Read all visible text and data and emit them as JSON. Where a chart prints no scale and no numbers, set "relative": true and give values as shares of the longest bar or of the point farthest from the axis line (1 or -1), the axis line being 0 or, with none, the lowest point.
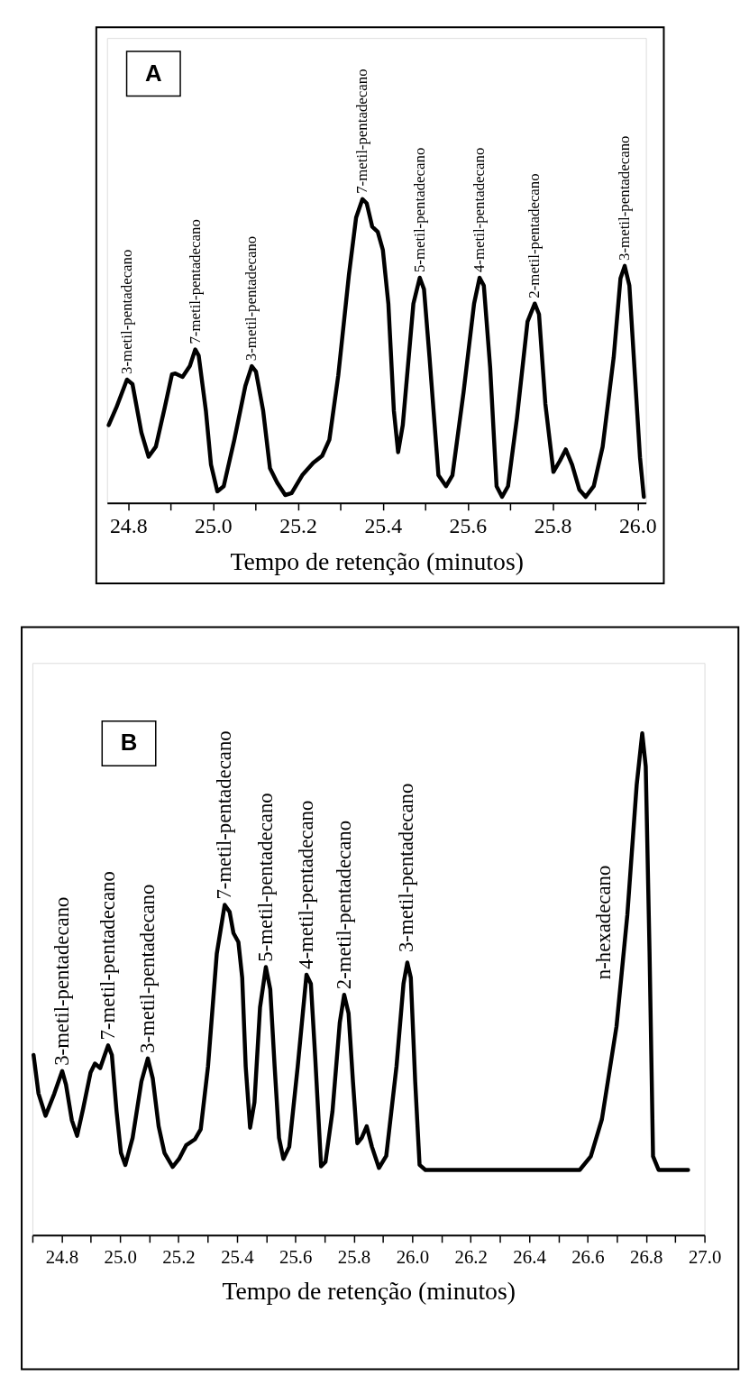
{
  "chart_data": [
    {
      "type": "line",
      "relative": true,
      "xlabel": "Tempo de retenção (minutos)",
      "color": "#000000",
      "line_style": "solid",
      "xlim": [
        24.75,
        26.02
      ],
      "xticks": [
        {
          "value": 24.8,
          "label": "24.8"
        },
        {
          "value": 24.9,
          "label": null
        },
        {
          "value": 25.0,
          "label": "25.0"
        },
        {
          "value": 25.1,
          "label": null
        },
        {
          "value": 25.2,
          "label": "25.2"
        },
        {
          "value": 25.3,
          "label": null
        },
        {
          "value": 25.4,
          "label": "25.4"
        },
        {
          "value": 25.5,
          "label": null
        },
        {
          "value": 25.6,
          "label": "25.6"
        },
        {
          "value": 25.7,
          "label": null
        },
        {
          "value": 25.8,
          "label": "25.8"
        },
        {
          "value": 25.9,
          "label": null
        },
        {
          "value": 26.0,
          "label": "26.0"
        }
      ],
      "x": [
        24.754,
        24.772,
        24.797,
        24.81,
        24.831,
        24.848,
        24.865,
        24.886,
        24.903,
        24.911,
        24.928,
        24.945,
        24.958,
        24.966,
        24.983,
        24.995,
        25.01,
        25.025,
        25.05,
        25.076,
        25.091,
        25.101,
        25.118,
        25.134,
        25.151,
        25.17,
        25.185,
        25.21,
        25.236,
        25.257,
        25.274,
        25.295,
        25.32,
        25.337,
        25.352,
        25.362,
        25.375,
        25.388,
        25.4,
        25.413,
        25.426,
        25.436,
        25.447,
        25.472,
        25.487,
        25.497,
        25.51,
        25.531,
        25.549,
        25.564,
        25.59,
        25.615,
        25.628,
        25.638,
        25.653,
        25.668,
        25.681,
        25.695,
        25.716,
        25.741,
        25.758,
        25.768,
        25.783,
        25.802,
        25.817,
        25.831,
        25.846,
        25.863,
        25.878,
        25.897,
        25.918,
        25.944,
        25.96,
        25.97,
        25.981,
        25.994,
        26.006,
        26.015
      ],
      "values": [
        0.256,
        0.314,
        0.406,
        0.391,
        0.232,
        0.152,
        0.185,
        0.314,
        0.423,
        0.426,
        0.415,
        0.45,
        0.505,
        0.485,
        0.303,
        0.126,
        0.038,
        0.055,
        0.208,
        0.385,
        0.45,
        0.432,
        0.303,
        0.114,
        0.067,
        0.026,
        0.032,
        0.091,
        0.132,
        0.155,
        0.208,
        0.42,
        0.75,
        0.939,
        1.0,
        0.986,
        0.909,
        0.892,
        0.833,
        0.656,
        0.303,
        0.167,
        0.256,
        0.656,
        0.741,
        0.703,
        0.479,
        0.091,
        0.055,
        0.091,
        0.362,
        0.656,
        0.741,
        0.715,
        0.444,
        0.055,
        0.02,
        0.055,
        0.279,
        0.597,
        0.656,
        0.621,
        0.326,
        0.102,
        0.138,
        0.176,
        0.126,
        0.044,
        0.02,
        0.055,
        0.185,
        0.479,
        0.739,
        0.78,
        0.715,
        0.42,
        0.15,
        0.02
      ],
      "annotations": [
        "A",
        {
          "text": "3-metil-pentadecano",
          "x": 24.797,
          "y": 0.406
        },
        {
          "text": "7-metil-pentadecano",
          "x": 24.958,
          "y": 0.505
        },
        {
          "text": "3-metil-pentadecano",
          "x": 25.091,
          "y": 0.45
        },
        {
          "text": "7-metil-pentadecano",
          "x": 25.352,
          "y": 1.0
        },
        {
          "text": "5-metil-pentadecano",
          "x": 25.487,
          "y": 0.741
        },
        {
          "text": "4-metil-pentadecano",
          "x": 25.628,
          "y": 0.741
        },
        {
          "text": "2-metil-pentadecano",
          "x": 25.758,
          "y": 0.656
        },
        {
          "text": "3-metil-pentadecano",
          "x": 25.97,
          "y": 0.78
        }
      ]
    },
    {
      "type": "line",
      "relative": true,
      "xlabel": "Tempo de retenção (minutos)",
      "color": "#000000",
      "line_style": "solid",
      "xlim": [
        24.7,
        27.0
      ],
      "xticks": [
        {
          "value": 24.7,
          "label": null
        },
        {
          "value": 24.8,
          "label": "24.8"
        },
        {
          "value": 24.9,
          "label": null
        },
        {
          "value": 25.0,
          "label": "25.0"
        },
        {
          "value": 25.1,
          "label": null
        },
        {
          "value": 25.2,
          "label": "25.2"
        },
        {
          "value": 25.3,
          "label": null
        },
        {
          "value": 25.4,
          "label": "25.4"
        },
        {
          "value": 25.5,
          "label": null
        },
        {
          "value": 25.6,
          "label": "25.6"
        },
        {
          "value": 25.7,
          "label": null
        },
        {
          "value": 25.8,
          "label": "25.8"
        },
        {
          "value": 25.9,
          "label": null
        },
        {
          "value": 26.0,
          "label": "26.0"
        },
        {
          "value": 26.1,
          "label": null
        },
        {
          "value": 26.2,
          "label": "26.2"
        },
        {
          "value": 26.3,
          "label": null
        },
        {
          "value": 26.4,
          "label": "26.4"
        },
        {
          "value": 26.5,
          "label": null
        },
        {
          "value": 26.6,
          "label": "26.6"
        },
        {
          "value": 26.7,
          "label": null
        },
        {
          "value": 26.8,
          "label": "26.8"
        },
        {
          "value": 26.9,
          "label": null
        },
        {
          "value": 27.0,
          "label": "27.0"
        }
      ],
      "x": [
        24.704,
        24.721,
        24.745,
        24.775,
        24.802,
        24.815,
        24.835,
        24.853,
        24.874,
        24.899,
        24.914,
        24.932,
        24.944,
        24.959,
        24.972,
        24.988,
        25.003,
        25.018,
        25.043,
        25.073,
        25.095,
        25.112,
        25.132,
        25.152,
        25.18,
        25.202,
        25.226,
        25.256,
        25.276,
        25.301,
        25.331,
        25.358,
        25.375,
        25.388,
        25.405,
        25.418,
        25.43,
        25.445,
        25.46,
        25.479,
        25.499,
        25.514,
        25.529,
        25.544,
        25.559,
        25.579,
        25.608,
        25.638,
        25.653,
        25.668,
        25.688,
        25.703,
        25.727,
        25.752,
        25.767,
        25.782,
        25.797,
        25.812,
        25.827,
        25.844,
        25.862,
        25.886,
        25.911,
        25.946,
        25.97,
        25.983,
        25.995,
        26.01,
        26.025,
        26.045,
        26.322,
        26.573,
        26.611,
        26.649,
        26.699,
        26.736,
        26.768,
        26.787,
        26.799,
        26.812,
        26.824,
        26.843,
        26.944
      ],
      "values": [
        0.359,
        0.282,
        0.238,
        0.282,
        0.327,
        0.3,
        0.229,
        0.198,
        0.253,
        0.324,
        0.342,
        0.333,
        0.353,
        0.378,
        0.359,
        0.247,
        0.164,
        0.14,
        0.194,
        0.306,
        0.352,
        0.312,
        0.217,
        0.164,
        0.136,
        0.152,
        0.179,
        0.191,
        0.211,
        0.336,
        0.561,
        0.658,
        0.644,
        0.602,
        0.584,
        0.513,
        0.336,
        0.214,
        0.265,
        0.454,
        0.534,
        0.49,
        0.336,
        0.194,
        0.152,
        0.176,
        0.336,
        0.519,
        0.501,
        0.353,
        0.137,
        0.146,
        0.247,
        0.424,
        0.479,
        0.442,
        0.306,
        0.183,
        0.194,
        0.217,
        0.176,
        0.134,
        0.158,
        0.336,
        0.501,
        0.543,
        0.513,
        0.306,
        0.14,
        0.13,
        0.13,
        0.13,
        0.157,
        0.231,
        0.416,
        0.638,
        0.897,
        1.0,
        0.934,
        0.564,
        0.157,
        0.13,
        0.13
      ],
      "annotations": [
        "B",
        {
          "text": "3-metil-pentadecano",
          "x": 24.802,
          "y": 0.327
        },
        {
          "text": "7-metil-pentadecano",
          "x": 24.959,
          "y": 0.378
        },
        {
          "text": "3-metil-pentadecano",
          "x": 25.095,
          "y": 0.352
        },
        {
          "text": "7-metil-pentadecano",
          "x": 25.358,
          "y": 0.658
        },
        {
          "text": "5-metil-pentadecano",
          "x": 25.499,
          "y": 0.534
        },
        {
          "text": "4-metil-pentadecano",
          "x": 25.638,
          "y": 0.519
        },
        {
          "text": "2-metil-pentadecano",
          "x": 25.767,
          "y": 0.479
        },
        {
          "text": "3-metil-pentadecano",
          "x": 25.98,
          "y": 0.553
        },
        "n-hexadecano"
      ]
    }
  ]
}
